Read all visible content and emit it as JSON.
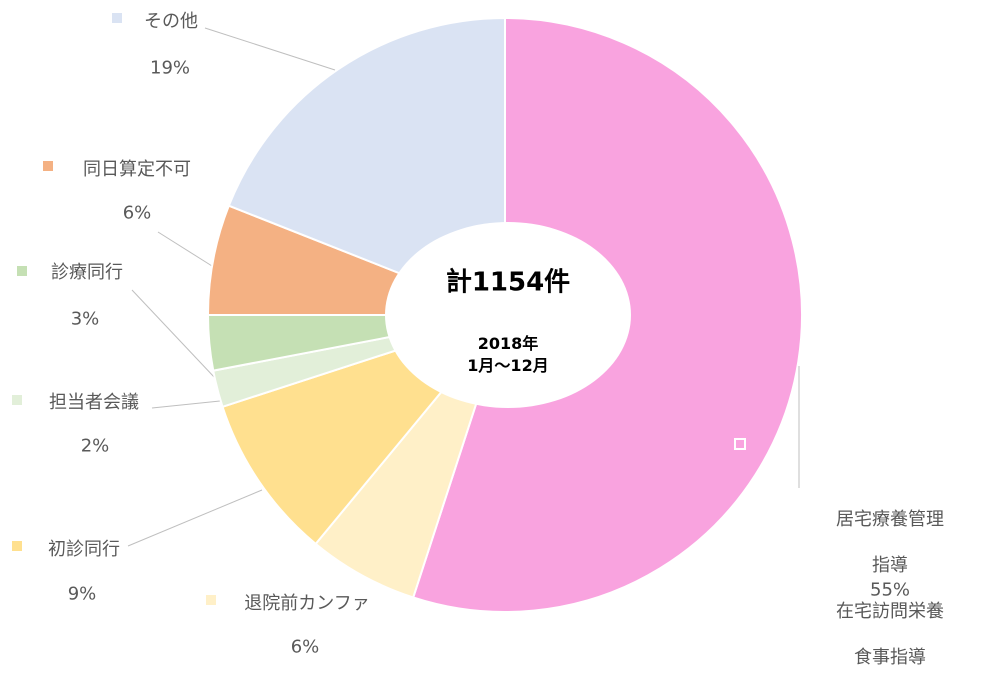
{
  "chart_data": {
    "type": "donut",
    "center_title": "計1154件",
    "center_subtitle": "2018年\n1月～12月",
    "categories": [
      "居宅療養管理指導\n在宅訪問栄養食事指導",
      "退院前カンファ",
      "初診同行",
      "担当者会議",
      "診療同行",
      "同日算定不可",
      "その他"
    ],
    "values": [
      55,
      6,
      9,
      2,
      3,
      6,
      19
    ],
    "value_labels": [
      "55%",
      "6%",
      "9%",
      "2%",
      "3%",
      "6%",
      "19%"
    ],
    "colors": [
      "#f9a3df",
      "#fff0c8",
      "#ffe08f",
      "#e2efd9",
      "#c5e0b4",
      "#f4b183",
      "#dae3f3"
    ]
  }
}
